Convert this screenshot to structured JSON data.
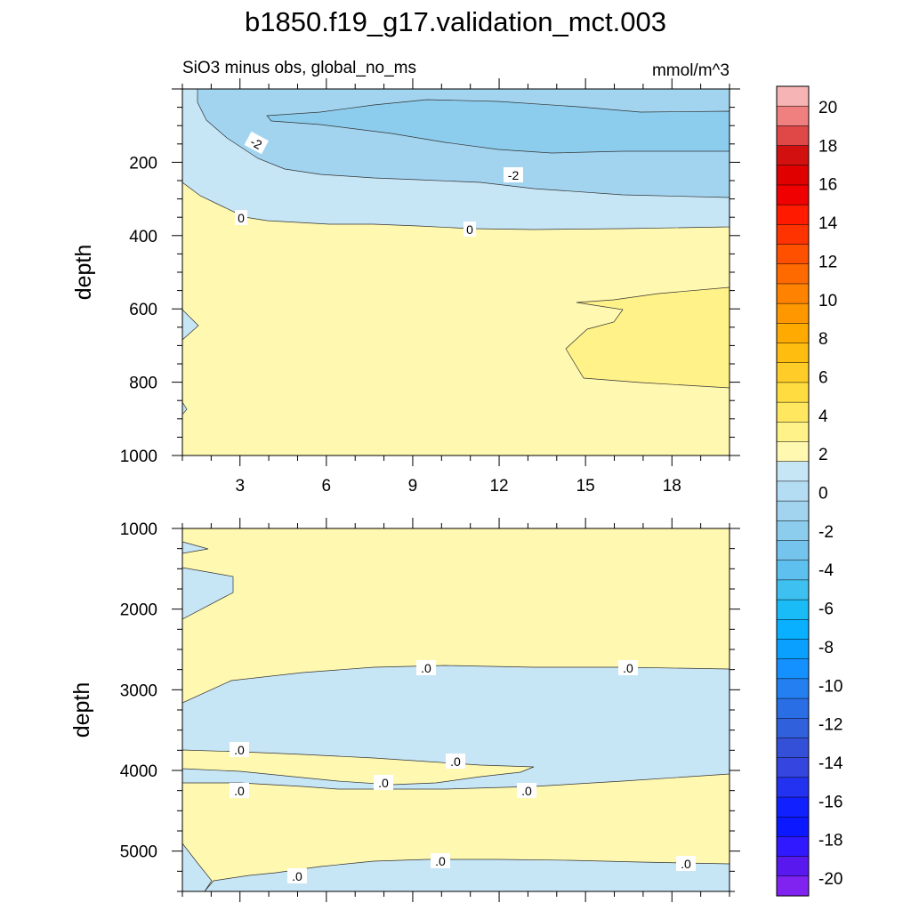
{
  "chart_data": {
    "type": "filled-contour",
    "title": "b1850.f19_g17.validation_mct.003",
    "left_string": "SiO3 minus obs, global_no_ms",
    "right_string": "mmol/m^3",
    "colorbar": {
      "tick_labels": [
        "20",
        "18",
        "16",
        "14",
        "12",
        "10",
        "8",
        "6",
        "4",
        "2",
        "0",
        "-2",
        "-4",
        "-6",
        "-8",
        "-10",
        "-12",
        "-14",
        "-16",
        "-18",
        "-20"
      ],
      "colors": [
        "#f7b4b4",
        "#f08080",
        "#e04848",
        "#d21010",
        "#e00000",
        "#f00000",
        "#ff1a00",
        "#ff3300",
        "#ff5000",
        "#ff6a00",
        "#ff8200",
        "#ff9800",
        "#ffaa00",
        "#ffbd10",
        "#ffcc28",
        "#ffdd40",
        "#ffe860",
        "#fff288",
        "#fff8b0",
        "#c6e5f5",
        "#b4dcf2",
        "#a2d4f0",
        "#8ccdee",
        "#75c4ee",
        "#5ec0ee",
        "#3ec0f0",
        "#1abcf8",
        "#08b0ff",
        "#0aa0ff",
        "#1590ff",
        "#2480f0",
        "#2a6ee6",
        "#3060dc",
        "#3450d8",
        "#3445e0",
        "#2232f0",
        "#1020ff",
        "#0c18ff",
        "#3018ff",
        "#5818ee",
        "#8022f0"
      ]
    },
    "panels": [
      {
        "name": "upper",
        "ylabel": "depth",
        "ylim": [
          0,
          1000
        ],
        "y_ticks": [
          "200",
          "400",
          "600",
          "800",
          "1000"
        ],
        "xlim": [
          1,
          20
        ],
        "x_ticks": [
          "3",
          "6",
          "9",
          "12",
          "15",
          "18"
        ],
        "contour_labels": [
          "-2",
          "-2",
          "0",
          "0"
        ]
      },
      {
        "name": "lower",
        "ylabel": "depth",
        "ylim": [
          1000,
          5500
        ],
        "y_ticks": [
          "1000",
          "2000",
          "3000",
          "4000",
          "5000"
        ],
        "xlim": [
          1,
          20
        ],
        "x_ticks": [],
        "contour_labels": [
          ".0",
          ".0",
          ".0",
          ".0",
          ".0",
          ".0",
          ".0",
          ".0",
          ".0",
          ".0"
        ]
      }
    ],
    "region_colors": {
      "deep_minus": "#8ccdee",
      "mid_minus": "#a2d4f0",
      "light_minus": "#c6e5f5",
      "zero_plus": "#fff8b0",
      "small_plus": "#fff288"
    }
  }
}
